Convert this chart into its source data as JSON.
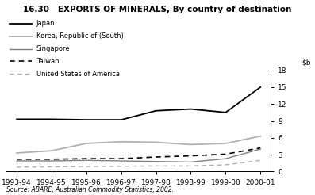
{
  "title": "16.30   EXPORTS OF MINERALS, By country of destination",
  "source": "Source: ABARE, Australian Commodity Statistics, 2002.",
  "x_labels": [
    "1993-94",
    "1994-95",
    "1995-96",
    "1996-97",
    "1997-98",
    "1998-99",
    "1999-00",
    "2000-01"
  ],
  "series": [
    {
      "name": "Japan",
      "color": "#000000",
      "linestyle": "solid",
      "linewidth": 1.3,
      "data": [
        9.3,
        9.3,
        9.2,
        9.2,
        10.8,
        11.1,
        10.5,
        15.0
      ]
    },
    {
      "name": "Korea, Republic of (South)",
      "color": "#b0b0b0",
      "linestyle": "solid",
      "linewidth": 1.3,
      "data": [
        3.3,
        3.7,
        5.0,
        5.3,
        5.2,
        4.8,
        5.0,
        6.3
      ]
    },
    {
      "name": "Singapore",
      "color": "#808080",
      "linestyle": "solid",
      "linewidth": 1.0,
      "data": [
        1.9,
        1.9,
        2.0,
        1.9,
        1.8,
        1.7,
        2.3,
        4.0
      ]
    },
    {
      "name": "Taiwan",
      "color": "#000000",
      "linestyle": "dashed",
      "linewidth": 1.2,
      "dashes": [
        4,
        3
      ],
      "data": [
        2.2,
        2.2,
        2.3,
        2.3,
        2.6,
        2.8,
        3.1,
        4.2
      ]
    },
    {
      "name": "United States of America",
      "color": "#b0b0b0",
      "linestyle": "dashed",
      "linewidth": 1.0,
      "dashes": [
        4,
        3
      ],
      "data": [
        0.8,
        0.85,
        0.9,
        0.95,
        1.0,
        1.0,
        1.2,
        2.0
      ]
    }
  ],
  "ylim": [
    0,
    18
  ],
  "yticks": [
    0,
    3,
    6,
    9,
    12,
    15,
    18
  ],
  "background_color": "#ffffff",
  "title_fontsize": 7.5,
  "legend_fontsize": 6.0,
  "axis_fontsize": 6.5,
  "source_fontsize": 5.5
}
